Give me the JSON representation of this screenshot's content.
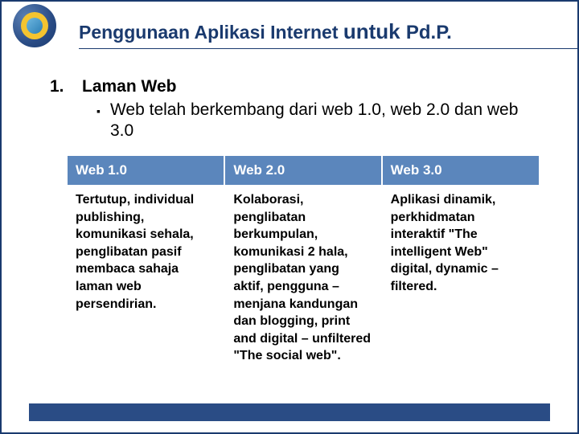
{
  "colors": {
    "brand_navy": "#1a3a6e",
    "header_row_bg": "#5b86bc",
    "footer_bar_bg": "#2a4c85",
    "logo_gold": "#f4c430",
    "text_black": "#000000",
    "text_white": "#ffffff"
  },
  "title": {
    "part1": "Penggunaan Aplikasi Internet ",
    "emph1": "untuk ",
    "emph2": "Pd.P."
  },
  "list": {
    "number": "1.",
    "heading": "Laman Web",
    "bullet_glyph": "▪",
    "bullet_text": "Web telah berkembang dari web 1.0, web 2.0 dan web 3.0"
  },
  "table": {
    "type": "table",
    "header_bg": "#5b86bc",
    "header_text_color": "#ffffff",
    "cell_text_color": "#000000",
    "font_size_header": 17,
    "font_size_cell": 16,
    "columns": [
      {
        "label": "Web 1.0"
      },
      {
        "label": "Web 2.0"
      },
      {
        "label": "Web 3.0"
      }
    ],
    "rows": [
      [
        "Tertutup, individual publishing, komunikasi sehala, penglibatan pasif membaca sahaja laman web persendirian.",
        "Kolaborasi, penglibatan berkumpulan, komunikasi 2 hala, penglibatan yang aktif, pengguna – menjana kandungan dan blogging, print and digital – unfiltered \"The social web\".",
        "Aplikasi dinamik, perkhidmatan interaktif \"The intelligent Web\" digital, dynamic – filtered."
      ]
    ]
  }
}
